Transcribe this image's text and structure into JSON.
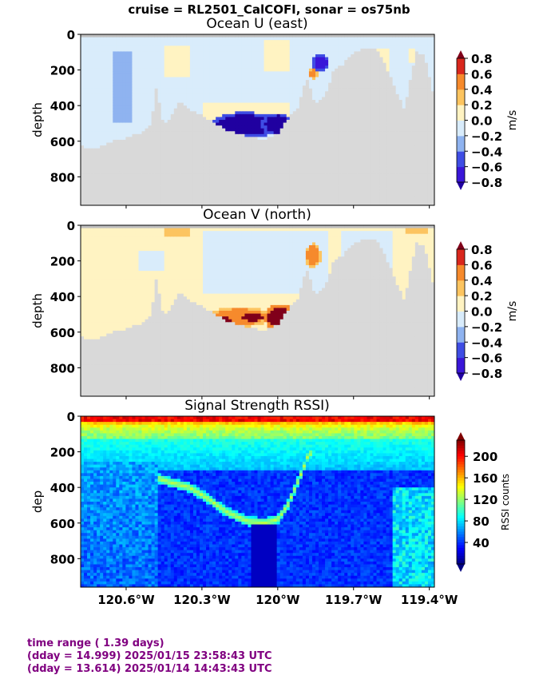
{
  "suptitle": "cruise = RL2501_CalCOFI,  sonar = os75nb",
  "colors": {
    "land": "#d9d9d9",
    "footer_text": "#800080"
  },
  "footer": {
    "line1": "time range ( 1.39 days)",
    "line2": "(dday = 14.999) 2025/01/15 23:58:43 UTC",
    "line3": "(dday = 13.614) 2025/01/14 14:43:43 UTC"
  },
  "chart_data": [
    {
      "type": "heatmap",
      "title": "Ocean U (east)",
      "xlabel": "",
      "ylabel": "depth",
      "xlim": [
        -120.78,
        -119.38
      ],
      "ylim": [
        960,
        0
      ],
      "yticks": [
        0,
        200,
        400,
        600,
        800
      ],
      "colorbar": {
        "label": "m/s",
        "ticks": [
          "0.8",
          "0.6",
          "0.4",
          "0.2",
          "0.0",
          "−0.2",
          "−0.4",
          "−0.6",
          "−0.8"
        ],
        "range": [
          -0.8,
          0.8
        ],
        "levels": [
          {
            "from": -0.8,
            "to": -0.6,
            "color": "#3a16d8"
          },
          {
            "from": -0.6,
            "to": -0.4,
            "color": "#3f4de4"
          },
          {
            "from": -0.4,
            "to": -0.2,
            "color": "#8fb3f0"
          },
          {
            "from": -0.2,
            "to": 0.0,
            "color": "#d9ecfb"
          },
          {
            "from": 0.0,
            "to": 0.2,
            "color": "#fff3c2"
          },
          {
            "from": 0.2,
            "to": 0.4,
            "color": "#fcc460"
          },
          {
            "from": 0.4,
            "to": 0.6,
            "color": "#f68a2c"
          },
          {
            "from": 0.6,
            "to": 0.8,
            "color": "#d9271d"
          }
        ],
        "extend_low": "#2000a0",
        "extend_high": "#80001a"
      },
      "background_value": -0.1,
      "features": [
        {
          "kind": "patch",
          "lon": [
            -120.45,
            -120.35
          ],
          "depth": [
            60,
            240
          ],
          "value": 0.1
        },
        {
          "kind": "patch",
          "lon": [
            -120.05,
            -119.95
          ],
          "depth": [
            40,
            200
          ],
          "value": 0.08
        },
        {
          "kind": "patch",
          "lon": [
            -119.62,
            -119.56
          ],
          "depth": [
            80,
            520
          ],
          "value": 0.15
        },
        {
          "kind": "patch",
          "lon": [
            -119.48,
            -119.45
          ],
          "depth": [
            80,
            160
          ],
          "value": 0.15
        },
        {
          "kind": "patch",
          "lon": [
            -120.65,
            -120.58
          ],
          "depth": [
            100,
            500
          ],
          "value": -0.3
        },
        {
          "kind": "patch",
          "lon": [
            -120.3,
            -119.95
          ],
          "depth": [
            380,
            480
          ],
          "value": 0.1
        },
        {
          "kind": "blob",
          "lon": -120.13,
          "depth": 510,
          "rlon": 0.11,
          "rdepth": 58,
          "value": -0.95
        },
        {
          "kind": "blob",
          "lon": -120.0,
          "depth": 505,
          "rlon": 0.05,
          "rdepth": 50,
          "value": -0.9
        },
        {
          "kind": "blob",
          "lon": -119.83,
          "depth": 160,
          "rlon": 0.025,
          "rdepth": 40,
          "value": -0.75
        },
        {
          "kind": "blob",
          "lon": -119.86,
          "depth": 220,
          "rlon": 0.015,
          "rdepth": 25,
          "value": 0.5
        }
      ],
      "bottom_profile": {
        "lon": [
          -120.78,
          -120.72,
          -120.68,
          -120.65,
          -120.62,
          -120.6,
          -120.55,
          -120.5,
          -120.48,
          -120.45,
          -120.4,
          -120.38,
          -120.35,
          -120.3,
          -120.25,
          -120.2,
          -120.15,
          -120.1,
          -120.05,
          -120.0,
          -119.97,
          -119.95,
          -119.92,
          -119.9,
          -119.88,
          -119.85,
          -119.82,
          -119.8,
          -119.78,
          -119.75,
          -119.7,
          -119.65,
          -119.6,
          -119.55,
          -119.5,
          -119.45,
          -119.42,
          -119.38
        ],
        "depth": [
          630,
          640,
          620,
          600,
          590,
          580,
          560,
          500,
          300,
          520,
          400,
          380,
          420,
          450,
          500,
          540,
          560,
          580,
          590,
          560,
          500,
          460,
          420,
          300,
          250,
          400,
          350,
          300,
          200,
          180,
          100,
          80,
          90,
          250,
          420,
          100,
          120,
          350
        ]
      }
    },
    {
      "type": "heatmap",
      "title": "Ocean V (north)",
      "xlabel": "",
      "ylabel": "depth",
      "xlim": [
        -120.78,
        -119.38
      ],
      "ylim": [
        960,
        0
      ],
      "yticks": [
        0,
        200,
        400,
        600,
        800
      ],
      "colorbar": {
        "label": "m/s",
        "ticks": [
          "0.8",
          "0.6",
          "0.4",
          "0.2",
          "0.0",
          "−0.2",
          "−0.4",
          "−0.6",
          "−0.8"
        ],
        "range": [
          -0.8,
          0.8
        ],
        "levels": [
          {
            "from": -0.8,
            "to": -0.6,
            "color": "#3a16d8"
          },
          {
            "from": -0.6,
            "to": -0.4,
            "color": "#3f4de4"
          },
          {
            "from": -0.4,
            "to": -0.2,
            "color": "#8fb3f0"
          },
          {
            "from": -0.2,
            "to": 0.0,
            "color": "#d9ecfb"
          },
          {
            "from": 0.0,
            "to": 0.2,
            "color": "#fff3c2"
          },
          {
            "from": 0.2,
            "to": 0.4,
            "color": "#fcc460"
          },
          {
            "from": 0.4,
            "to": 0.6,
            "color": "#f68a2c"
          },
          {
            "from": 0.6,
            "to": 0.8,
            "color": "#d9271d"
          }
        ],
        "extend_low": "#2000a0",
        "extend_high": "#80001a"
      },
      "background_value": 0.08,
      "features": [
        {
          "kind": "patch",
          "lon": [
            -120.3,
            -119.8
          ],
          "depth": [
            40,
            380
          ],
          "value": -0.1
        },
        {
          "kind": "patch",
          "lon": [
            -120.55,
            -120.45
          ],
          "depth": [
            150,
            250
          ],
          "value": -0.1
        },
        {
          "kind": "patch",
          "lon": [
            -119.75,
            -119.55
          ],
          "depth": [
            40,
            300
          ],
          "value": -0.1
        },
        {
          "kind": "patch",
          "lon": [
            -120.45,
            -120.35
          ],
          "depth": [
            10,
            60
          ],
          "value": 0.25
        },
        {
          "kind": "patch",
          "lon": [
            -119.5,
            -119.4
          ],
          "depth": [
            10,
            40
          ],
          "value": 0.25
        },
        {
          "kind": "blob",
          "lon": -120.15,
          "depth": 515,
          "rlon": 0.1,
          "rdepth": 45,
          "value": 0.5
        },
        {
          "kind": "blob",
          "lon": -120.1,
          "depth": 515,
          "rlon": 0.04,
          "rdepth": 25,
          "value": 0.9
        },
        {
          "kind": "blob",
          "lon": -119.99,
          "depth": 520,
          "rlon": 0.05,
          "rdepth": 60,
          "value": 0.95
        },
        {
          "kind": "blob",
          "lon": -119.86,
          "depth": 170,
          "rlon": 0.025,
          "rdepth": 55,
          "value": 0.55
        },
        {
          "kind": "blob",
          "lon": -120.22,
          "depth": 530,
          "rlon": 0.035,
          "rdepth": 20,
          "value": 0.9
        }
      ],
      "bottom_profile": {
        "lon": [
          -120.78,
          -120.72,
          -120.68,
          -120.65,
          -120.62,
          -120.6,
          -120.55,
          -120.5,
          -120.48,
          -120.45,
          -120.4,
          -120.38,
          -120.35,
          -120.3,
          -120.25,
          -120.2,
          -120.15,
          -120.1,
          -120.05,
          -120.0,
          -119.97,
          -119.95,
          -119.92,
          -119.9,
          -119.88,
          -119.85,
          -119.82,
          -119.8,
          -119.78,
          -119.75,
          -119.7,
          -119.65,
          -119.6,
          -119.55,
          -119.5,
          -119.45,
          -119.42,
          -119.38
        ],
        "depth": [
          630,
          640,
          620,
          600,
          590,
          580,
          560,
          500,
          300,
          520,
          400,
          380,
          420,
          450,
          500,
          540,
          560,
          580,
          590,
          560,
          500,
          460,
          420,
          300,
          250,
          400,
          350,
          300,
          200,
          180,
          100,
          80,
          90,
          250,
          420,
          100,
          120,
          350
        ]
      }
    },
    {
      "type": "heatmap",
      "title": "Signal Strength RSSI)",
      "xlabel": "",
      "ylabel": "dep",
      "xlim": [
        -120.78,
        -119.38
      ],
      "ylim": [
        960,
        0
      ],
      "yticks": [
        0,
        200,
        400,
        600,
        800
      ],
      "xticks": [
        {
          "value": -120.6,
          "label": "120.6°W"
        },
        {
          "value": -120.3,
          "label": "120.3°W"
        },
        {
          "value": -120.0,
          "label": "120°W"
        },
        {
          "value": -119.7,
          "label": "119.7°W"
        },
        {
          "value": -119.4,
          "label": "119.4°W"
        }
      ],
      "colorbar": {
        "label": "RSSI counts",
        "ticks": [
          "200",
          "160",
          "120",
          "80",
          "40"
        ],
        "range": [
          0,
          230
        ],
        "colormap": "jet"
      },
      "surface_value": 190,
      "deep_value": 30,
      "ring_value": 130,
      "ring_profile": {
        "lon": [
          -120.47,
          -120.43,
          -120.35,
          -120.28,
          -120.2,
          -120.12,
          -120.05,
          -120.0,
          -119.96,
          -119.93,
          -119.9,
          -119.88,
          -119.86
        ],
        "depth": [
          350,
          370,
          400,
          460,
          540,
          590,
          600,
          580,
          500,
          400,
          300,
          220,
          200
        ]
      }
    }
  ]
}
